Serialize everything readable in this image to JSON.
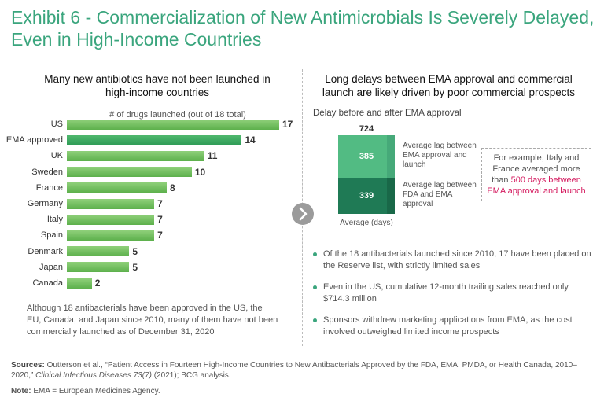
{
  "title": "Exhibit 6 - Commercialization of New Antimicrobials Is Severely Delayed, Even in High-Income Countries",
  "left": {
    "heading": "Many new antibiotics have not been launched in high-income countries",
    "note": "Although 18 antibacterials have been approved in the US, the EU, Canada, and Japan since 2010, many of them have not been commercially launched as of December 31, 2020"
  },
  "right": {
    "heading": "Long delays between EMA approval and commercial launch are likely driven by poor commercial prospects",
    "subtitle": "Delay before and after EMA approval",
    "callout": {
      "text_before": "For example, Italy and France averaged more than ",
      "highlight": "500 days between EMA approval and launch"
    },
    "bullets": [
      "Of the 18 antibacterials launched since 2010, 17 have been placed on the Reserve list, with strictly limited sales",
      "Even in the US, cumulative 12-month trailing sales reached only $714.3 million",
      "Sponsors withdrew marketing applications from EMA, as the cost involved outweighed limited income prospects"
    ]
  },
  "chart_data": [
    {
      "type": "bar",
      "orientation": "horizontal",
      "title": "# of drugs launched (out of 18 total)",
      "categories": [
        "US",
        "EMA approved",
        "UK",
        "Sweden",
        "France",
        "Germany",
        "Italy",
        "Spain",
        "Denmark",
        "Japan",
        "Canada"
      ],
      "values": [
        17,
        14,
        11,
        10,
        8,
        7,
        7,
        7,
        5,
        5,
        2
      ],
      "highlighted": [
        "EMA approved"
      ],
      "xlim": [
        0,
        17
      ],
      "colors": {
        "bar": "#6cbd58",
        "highlight": "#3aa463"
      }
    },
    {
      "type": "bar",
      "stacked": true,
      "categories": [
        "Average (days)"
      ],
      "total": 724,
      "series": [
        {
          "name": "Average lag between FDA and EMA approval",
          "values": [
            339
          ],
          "color": "#1f7a55"
        },
        {
          "name": "Average lag between EMA approval and launch",
          "values": [
            385
          ],
          "color": "#52bb83"
        }
      ],
      "xlabel": "Average (days)"
    }
  ],
  "footer": {
    "sources_label": "Sources:",
    "sources_text_1": " Outterson et al., “Patient Access in Fourteen High-Income Countries to New Antibacterials Approved by the FDA, EMA, PMDA, or Health Canada, 2010–2020,” ",
    "journal": "Clinical Infectious Diseases 73(7)",
    "sources_text_2": " (2021); BCG analysis.",
    "note_label": "Note:",
    "note_text": " EMA = European Medicines Agency."
  }
}
